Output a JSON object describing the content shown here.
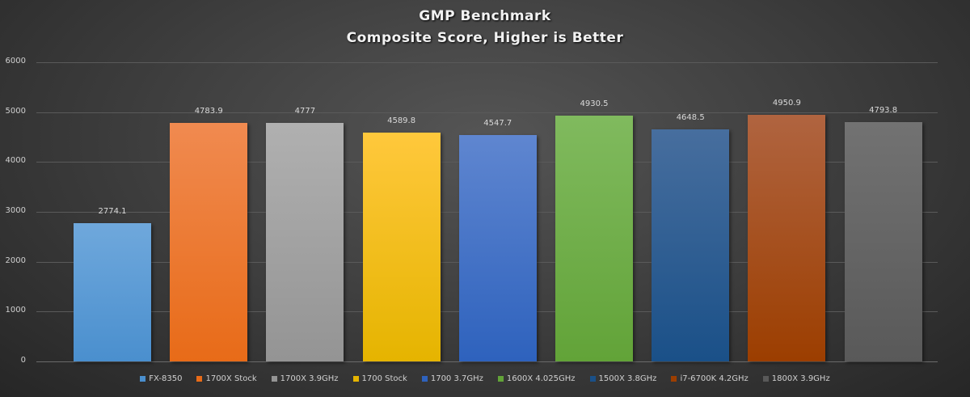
{
  "chart_data": {
    "type": "bar",
    "title": "GMP Benchmark",
    "subtitle": "Composite Score, Higher is Better",
    "xlabel": "",
    "ylabel": "",
    "ylim": [
      0,
      6000
    ],
    "yticks": [
      0,
      1000,
      2000,
      3000,
      4000,
      5000,
      6000
    ],
    "grid": true,
    "legend_position": "bottom",
    "categories": [
      "FX-8350",
      "1700X Stock",
      "1700X 3.9GHz",
      "1700 Stock",
      "1700 3.7GHz",
      "1600X 4.025GHz",
      "1500X 3.8GHz",
      "i7-6700K 4.2GHz",
      "1800X 3.9GHz"
    ],
    "series": [
      {
        "name": "FX-8350",
        "values": [
          2774.1
        ],
        "label": "2774.1",
        "color_top": "#6fa8dc",
        "color_bottom": "#4a8fce"
      },
      {
        "name": "1700X Stock",
        "values": [
          4783.9
        ],
        "label": "4783.9",
        "color_top": "#f08a50",
        "color_bottom": "#e86b18"
      },
      {
        "name": "1700X 3.9GHz",
        "values": [
          4777
        ],
        "label": "4777",
        "color_top": "#b0b0b0",
        "color_bottom": "#949494"
      },
      {
        "name": "1700 Stock",
        "values": [
          4589.8
        ],
        "label": "4589.8",
        "color_top": "#ffc83c",
        "color_bottom": "#e5b400"
      },
      {
        "name": "1700 3.7GHz",
        "values": [
          4547.7
        ],
        "label": "4547.7",
        "color_top": "#5f86d0",
        "color_bottom": "#2e62bd"
      },
      {
        "name": "1600X 4.025GHz",
        "values": [
          4930.5
        ],
        "label": "4930.5",
        "color_top": "#80ba5e",
        "color_bottom": "#62a338"
      },
      {
        "name": "1500X 3.8GHz",
        "values": [
          4648.5
        ],
        "label": "4648.5",
        "color_top": "#476e9e",
        "color_bottom": "#1a5088"
      },
      {
        "name": "i7-6700K 4.2GHz",
        "values": [
          4950.9
        ],
        "label": "4950.9",
        "color_top": "#b06440",
        "color_bottom": "#9c3e00"
      },
      {
        "name": "1800X 3.9GHz",
        "values": [
          4793.8
        ],
        "label": "4793.8",
        "color_top": "#727272",
        "color_bottom": "#595959"
      }
    ]
  }
}
